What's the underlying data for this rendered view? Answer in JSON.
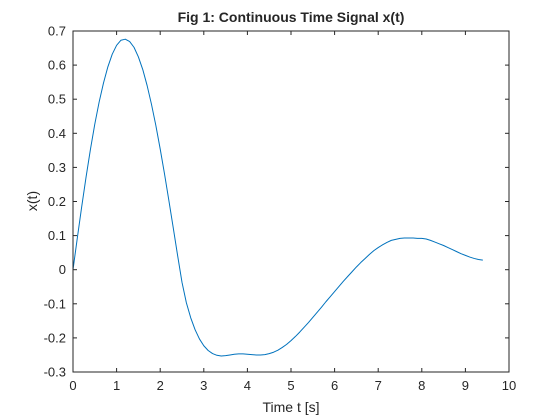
{
  "chart_data": {
    "type": "line",
    "title": "Fig 1: Continuous Time Signal x(t)",
    "xlabel": "Time t [s]",
    "ylabel": "x(t)",
    "xlim": [
      0,
      10
    ],
    "ylim": [
      -0.3,
      0.7
    ],
    "xticks": [
      "0",
      "1",
      "2",
      "3",
      "4",
      "5",
      "6",
      "7",
      "8",
      "9",
      "10"
    ],
    "yticks": [
      "-0.3",
      "-0.2",
      "-0.1",
      "0",
      "0.1",
      "0.2",
      "0.3",
      "0.4",
      "0.5",
      "0.6",
      "0.7"
    ],
    "grid": false,
    "series": [
      {
        "color": "#0072BD",
        "x": [
          0,
          0.1,
          0.2,
          0.3,
          0.4,
          0.5,
          0.6,
          0.7,
          0.8,
          0.9,
          1.0,
          1.1,
          1.2,
          1.3,
          1.4,
          1.5,
          1.6,
          1.7,
          1.8,
          1.9,
          2.0,
          2.1,
          2.2,
          2.3,
          2.4,
          2.5,
          2.6,
          2.7,
          2.8,
          2.9,
          3.0,
          3.1,
          3.2,
          3.3,
          3.4,
          3.5,
          3.6,
          3.7,
          3.8,
          3.9,
          4.0,
          4.1,
          4.2,
          4.3,
          4.4,
          4.5,
          4.6,
          4.7,
          4.8,
          4.9,
          5.0,
          5.1,
          5.2,
          5.3,
          5.4,
          5.5,
          5.6,
          5.7,
          5.8,
          5.9,
          6.0,
          6.1,
          6.2,
          6.3,
          6.4,
          6.5,
          6.6,
          6.7,
          6.8,
          6.9,
          7.0,
          7.1,
          7.2,
          7.3,
          7.4,
          7.5,
          7.6,
          7.7,
          7.8,
          7.9,
          8.0,
          8.1,
          8.2,
          8.3,
          8.4,
          8.5,
          8.6,
          8.7,
          8.8,
          8.9,
          9.0,
          9.1,
          9.2,
          9.3,
          9.4
        ],
        "y": [
          0.0,
          0.094,
          0.185,
          0.272,
          0.353,
          0.427,
          0.492,
          0.548,
          0.595,
          0.632,
          0.658,
          0.673,
          0.676,
          0.669,
          0.652,
          0.624,
          0.587,
          0.54,
          0.485,
          0.423,
          0.354,
          0.28,
          0.202,
          0.122,
          0.041,
          -0.037,
          -0.097,
          -0.141,
          -0.176,
          -0.203,
          -0.223,
          -0.237,
          -0.246,
          -0.251,
          -0.253,
          -0.252,
          -0.25,
          -0.248,
          -0.247,
          -0.247,
          -0.248,
          -0.249,
          -0.25,
          -0.25,
          -0.249,
          -0.246,
          -0.242,
          -0.236,
          -0.228,
          -0.219,
          -0.208,
          -0.196,
          -0.183,
          -0.169,
          -0.155,
          -0.14,
          -0.125,
          -0.11,
          -0.094,
          -0.079,
          -0.064,
          -0.049,
          -0.034,
          -0.02,
          -0.006,
          0.008,
          0.021,
          0.033,
          0.045,
          0.056,
          0.065,
          0.073,
          0.08,
          0.086,
          0.089,
          0.092,
          0.093,
          0.093,
          0.093,
          0.092,
          0.092,
          0.09,
          0.086,
          0.081,
          0.076,
          0.071,
          0.065,
          0.059,
          0.053,
          0.047,
          0.042,
          0.037,
          0.033,
          0.03,
          0.028
        ]
      }
    ]
  }
}
